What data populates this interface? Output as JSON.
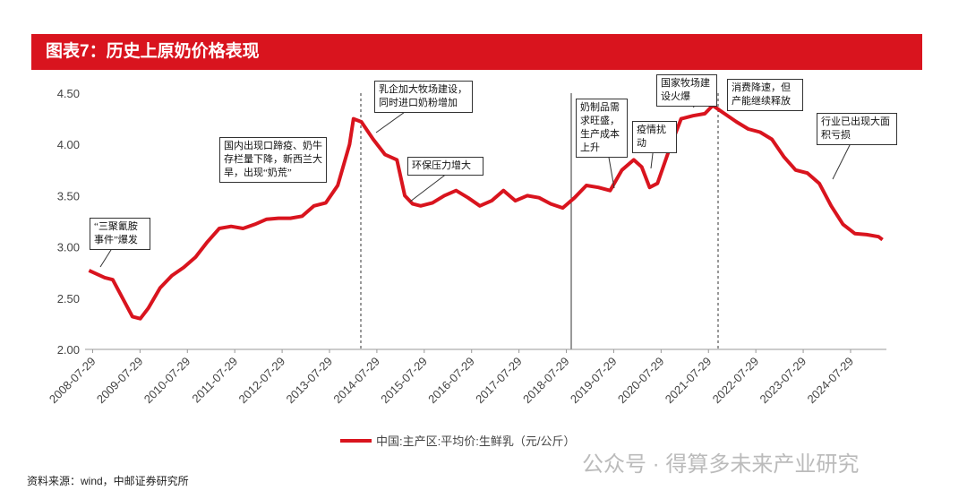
{
  "header": {
    "title": "图表7：历史上原奶价格表现"
  },
  "chart_data": {
    "type": "line",
    "x": [
      "2008-07",
      "2008-11",
      "2009-01",
      "2009-06",
      "2009-08",
      "2009-10",
      "2010-01",
      "2010-04",
      "2010-07",
      "2010-10",
      "2011-01",
      "2011-04",
      "2011-07",
      "2011-10",
      "2012-01",
      "2012-04",
      "2012-07",
      "2012-10",
      "2013-01",
      "2013-04",
      "2013-07",
      "2013-10",
      "2014-01",
      "2014-02",
      "2014-04",
      "2014-07",
      "2014-10",
      "2015-01",
      "2015-03",
      "2015-05",
      "2015-07",
      "2015-10",
      "2016-01",
      "2016-04",
      "2016-07",
      "2016-10",
      "2017-01",
      "2017-04",
      "2017-07",
      "2017-10",
      "2018-01",
      "2018-04",
      "2018-07",
      "2018-10",
      "2019-01",
      "2019-04",
      "2019-07",
      "2019-10",
      "2020-01",
      "2020-03",
      "2020-05",
      "2020-07",
      "2020-10",
      "2021-01",
      "2021-04",
      "2021-07",
      "2021-09",
      "2021-12",
      "2022-03",
      "2022-06",
      "2022-09",
      "2022-12",
      "2023-03",
      "2023-06",
      "2023-09",
      "2023-12",
      "2024-03",
      "2024-06",
      "2024-09",
      "2024-12",
      "2025-03",
      "2025-04"
    ],
    "series": [
      {
        "name": "中国:主产区:平均价:生鲜乳（元/公斤）",
        "color": "#d9141e",
        "values": [
          2.77,
          2.7,
          2.68,
          2.32,
          2.3,
          2.4,
          2.6,
          2.72,
          2.8,
          2.9,
          3.05,
          3.18,
          3.2,
          3.18,
          3.22,
          3.27,
          3.28,
          3.28,
          3.3,
          3.4,
          3.43,
          3.6,
          4.0,
          4.25,
          4.22,
          4.05,
          3.9,
          3.85,
          3.5,
          3.42,
          3.4,
          3.43,
          3.5,
          3.55,
          3.48,
          3.4,
          3.45,
          3.55,
          3.45,
          3.5,
          3.48,
          3.42,
          3.38,
          3.48,
          3.6,
          3.58,
          3.55,
          3.75,
          3.85,
          3.78,
          3.58,
          3.62,
          3.95,
          4.25,
          4.28,
          4.3,
          4.38,
          4.3,
          4.22,
          4.15,
          4.12,
          4.05,
          3.88,
          3.75,
          3.72,
          3.62,
          3.4,
          3.22,
          3.13,
          3.12,
          3.1,
          3.07
        ]
      }
    ],
    "xlim": [
      "2008-06",
      "2025-05"
    ],
    "xticks": [
      "2008-07-29",
      "2009-07-29",
      "2010-07-29",
      "2011-07-29",
      "2012-07-29",
      "2013-07-29",
      "2014-07-29",
      "2015-07-29",
      "2016-07-29",
      "2017-07-29",
      "2018-07-29",
      "2019-07-29",
      "2020-07-29",
      "2021-07-29",
      "2022-07-29",
      "2023-07-29",
      "2024-07-29"
    ],
    "ylim": [
      2,
      4.5
    ],
    "yticks": [
      {
        "value": 2,
        "label": "2.00"
      },
      {
        "value": 2.5,
        "label": "2.50"
      },
      {
        "value": 3,
        "label": "3.00"
      },
      {
        "value": 3.5,
        "label": "3.50"
      },
      {
        "value": 4,
        "label": "4.00"
      },
      {
        "value": 4.5,
        "label": "4.50"
      }
    ],
    "grid": false,
    "annotations": [
      "“三聚氰胺事件”爆发",
      "国内出现口蹄疫、奶牛存栏量下降，新西兰大旱，出现“奶荒”",
      "乳企加大牧场建设，同时进口奶粉增加",
      "环保压力增大",
      "奶制品需求旺盛，生产成本上升",
      "疫情扰动",
      "国家牧场建设火爆",
      "消费降速，但产能继续释放",
      "行业已出现大面积亏损"
    ]
  },
  "footer": {
    "source": "资料来源：wind，中邮证券研究所",
    "watermark": "公众号 · 得算多未来产业研究"
  }
}
